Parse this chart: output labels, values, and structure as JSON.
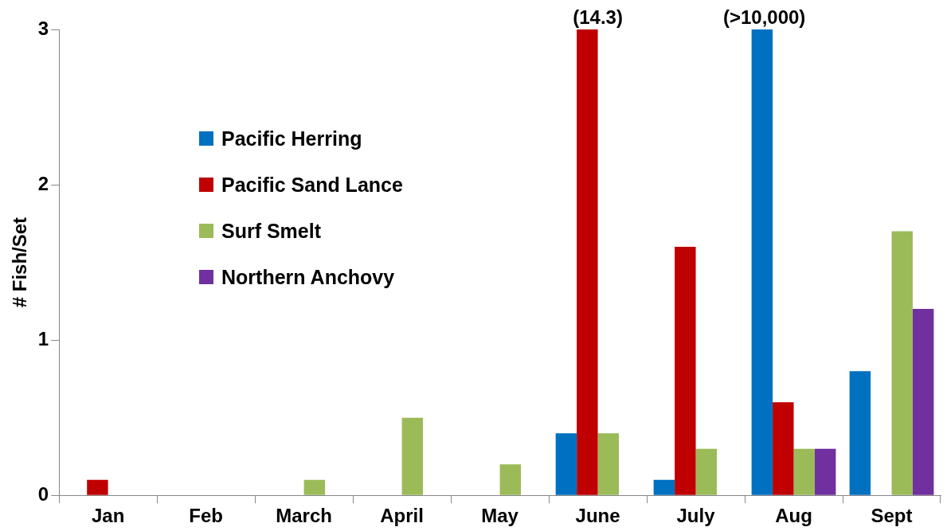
{
  "chart_data": {
    "type": "bar",
    "ylabel": "# Fish/Set",
    "categories": [
      "Jan",
      "Feb",
      "March",
      "April",
      "May",
      "June",
      "July",
      "Aug",
      "Sept"
    ],
    "series": [
      {
        "name": "Pacific Herring",
        "color": "#0070c0",
        "values": [
          0,
          0,
          0,
          0,
          0,
          0.4,
          0.1,
          3,
          0.8
        ]
      },
      {
        "name": "Pacific Sand Lance",
        "color": "#c00000",
        "values": [
          0.1,
          0,
          0,
          0,
          0,
          3,
          1.6,
          0.6,
          0
        ]
      },
      {
        "name": "Surf Smelt",
        "color": "#9bbb59",
        "values": [
          0,
          0,
          0.1,
          0.5,
          0.2,
          0.4,
          0.3,
          0.3,
          1.7
        ]
      },
      {
        "name": "Northern Anchovy",
        "color": "#7030a0",
        "values": [
          0,
          0,
          0,
          0,
          0,
          0,
          0,
          0.3,
          1.2
        ]
      }
    ],
    "ylim": [
      0,
      3
    ],
    "yticks": [
      0,
      1,
      2,
      3
    ],
    "grid": false,
    "legend": "top left",
    "annotations": [
      {
        "text": "(14.3)",
        "x": "June",
        "y": 3
      },
      "(>10,000)"
    ]
  }
}
